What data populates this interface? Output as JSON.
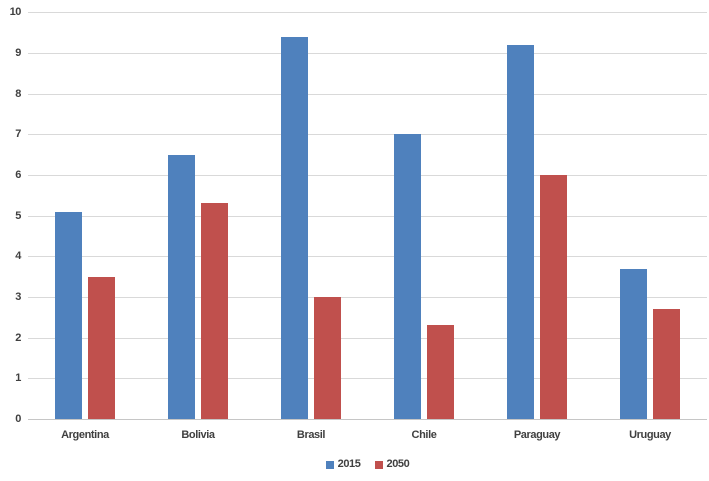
{
  "chart_data": {
    "type": "bar",
    "title": "",
    "xlabel": "",
    "ylabel": "",
    "categories": [
      "Argentina",
      "Bolivia",
      "Brasil",
      "Chile",
      "Paraguay",
      "Uruguay"
    ],
    "series": [
      {
        "name": "2015",
        "color": "#4f81bd",
        "values": [
          5.1,
          6.5,
          9.4,
          7.0,
          9.2,
          3.7
        ]
      },
      {
        "name": "2050",
        "color": "#c0504d",
        "values": [
          3.5,
          5.3,
          3.0,
          2.3,
          6.0,
          2.7
        ]
      }
    ],
    "ylim": [
      0,
      10
    ],
    "ytick_step": 1,
    "ytick_labels": [
      "0",
      "1",
      "2",
      "3",
      "4",
      "5",
      "6",
      "7",
      "8",
      "9",
      "10"
    ],
    "grid": true,
    "legend_position": "bottom"
  },
  "legend": {
    "items": [
      {
        "label": "2015",
        "color": "#4f81bd"
      },
      {
        "label": "2050",
        "color": "#c0504d"
      }
    ]
  },
  "colors": {
    "background": "#ffffff",
    "gridline": "#d9d9d9",
    "axis_line": "#c6c6c6",
    "text": "#404040"
  }
}
